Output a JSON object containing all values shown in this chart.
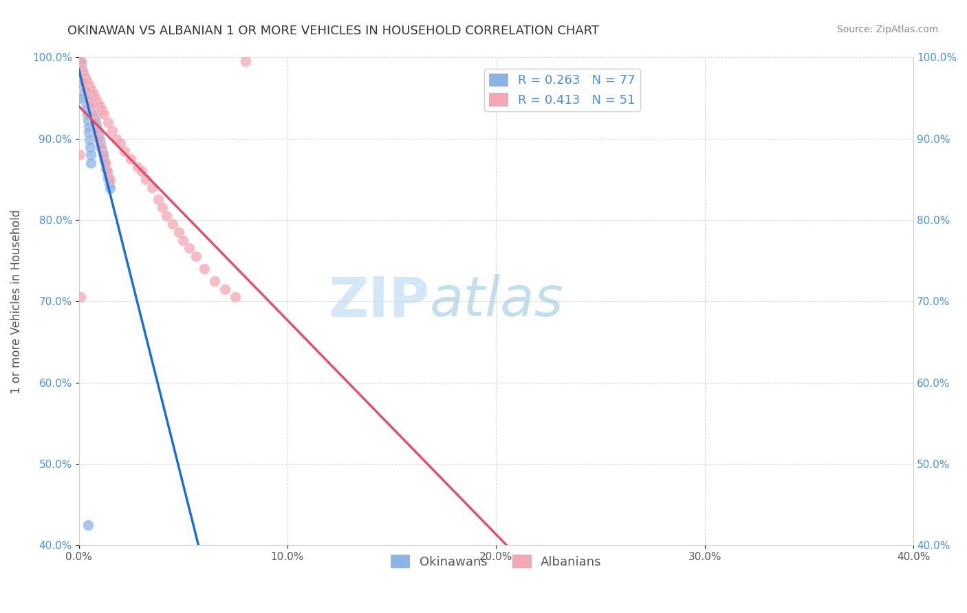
{
  "title": "OKINAWAN VS ALBANIAN 1 OR MORE VEHICLES IN HOUSEHOLD CORRELATION CHART",
  "source": "Source: ZipAtlas.com",
  "xlabel": "",
  "ylabel": "1 or more Vehicles in Household",
  "xlim": [
    0.0,
    40.0
  ],
  "ylim": [
    40.0,
    100.0
  ],
  "xticks": [
    0.0,
    10.0,
    20.0,
    30.0,
    40.0
  ],
  "yticks": [
    40.0,
    50.0,
    60.0,
    70.0,
    80.0,
    90.0,
    100.0
  ],
  "legend_labels": [
    "Okinawans",
    "Albanians"
  ],
  "legend_r": [
    0.263,
    0.413
  ],
  "legend_n": [
    77,
    51
  ],
  "okinawan_color": "#8ab4e8",
  "albanian_color": "#f4a7b4",
  "trendline_okinawan_color": "#1a6fd4",
  "trendline_albanian_color": "#e05070",
  "background_color": "#ffffff",
  "watermark_zip": "ZIP",
  "watermark_atlas": "atlas",
  "okinawan_x": [
    0.05,
    0.05,
    0.05,
    0.05,
    0.05,
    0.05,
    0.07,
    0.07,
    0.07,
    0.07,
    0.08,
    0.08,
    0.08,
    0.1,
    0.1,
    0.1,
    0.12,
    0.12,
    0.15,
    0.15,
    0.18,
    0.2,
    0.22,
    0.25,
    0.28,
    0.3,
    0.35,
    0.4,
    0.45,
    0.5,
    0.55,
    0.6,
    0.65,
    0.7,
    0.75,
    0.8,
    0.85,
    0.9,
    0.95,
    1.0,
    1.05,
    1.1,
    1.15,
    1.2,
    1.25,
    1.3,
    1.35,
    1.4,
    1.45,
    1.5,
    0.06,
    0.09,
    0.11,
    0.13,
    0.14,
    0.16,
    0.17,
    0.19,
    0.21,
    0.23,
    0.26,
    0.27,
    0.29,
    0.31,
    0.33,
    0.36,
    0.38,
    0.41,
    0.43,
    0.46,
    0.48,
    0.51,
    0.53,
    0.56,
    0.58,
    0.05,
    0.44
  ],
  "okinawan_y": [
    99.5,
    99.3,
    99.1,
    98.9,
    98.7,
    98.5,
    99.4,
    99.2,
    99.0,
    98.8,
    99.3,
    99.1,
    98.9,
    99.2,
    99.0,
    98.8,
    98.8,
    98.6,
    98.7,
    98.4,
    98.3,
    98.1,
    97.9,
    97.7,
    97.5,
    97.2,
    96.8,
    96.3,
    95.8,
    95.3,
    94.8,
    94.3,
    93.8,
    93.2,
    92.7,
    92.1,
    91.6,
    91.0,
    90.5,
    89.9,
    89.3,
    88.7,
    88.1,
    87.5,
    86.9,
    86.3,
    85.7,
    85.1,
    84.5,
    83.9,
    99.0,
    98.5,
    98.3,
    98.1,
    97.9,
    97.7,
    97.5,
    97.3,
    97.0,
    96.7,
    96.4,
    96.1,
    95.7,
    95.3,
    94.8,
    94.2,
    93.6,
    93.0,
    92.3,
    91.5,
    90.8,
    89.9,
    89.0,
    88.0,
    87.0,
    95.0,
    42.5
  ],
  "albanian_x": [
    0.05,
    0.1,
    0.15,
    0.2,
    0.3,
    0.4,
    0.5,
    0.6,
    0.7,
    0.8,
    0.9,
    1.0,
    1.1,
    1.2,
    1.4,
    1.6,
    1.8,
    2.0,
    2.2,
    2.5,
    2.8,
    3.0,
    3.2,
    3.5,
    3.8,
    4.0,
    4.2,
    4.5,
    4.8,
    5.0,
    5.3,
    5.6,
    6.0,
    6.5,
    7.0,
    7.5,
    8.0,
    0.25,
    0.35,
    0.45,
    0.55,
    0.65,
    0.75,
    0.85,
    0.95,
    1.05,
    1.15,
    1.25,
    1.35,
    1.5,
    0.08
  ],
  "albanian_y": [
    88.0,
    99.5,
    98.5,
    98.0,
    97.5,
    97.0,
    96.5,
    96.0,
    95.5,
    95.0,
    94.5,
    94.0,
    93.5,
    93.0,
    92.0,
    91.0,
    90.0,
    89.5,
    88.5,
    87.5,
    86.5,
    86.0,
    85.0,
    84.0,
    82.5,
    81.5,
    80.5,
    79.5,
    78.5,
    77.5,
    76.5,
    75.5,
    74.0,
    72.5,
    71.5,
    70.5,
    99.5,
    97.0,
    96.0,
    95.0,
    94.0,
    93.0,
    92.0,
    91.0,
    90.0,
    89.0,
    88.0,
    87.0,
    86.0,
    85.0,
    70.5
  ]
}
